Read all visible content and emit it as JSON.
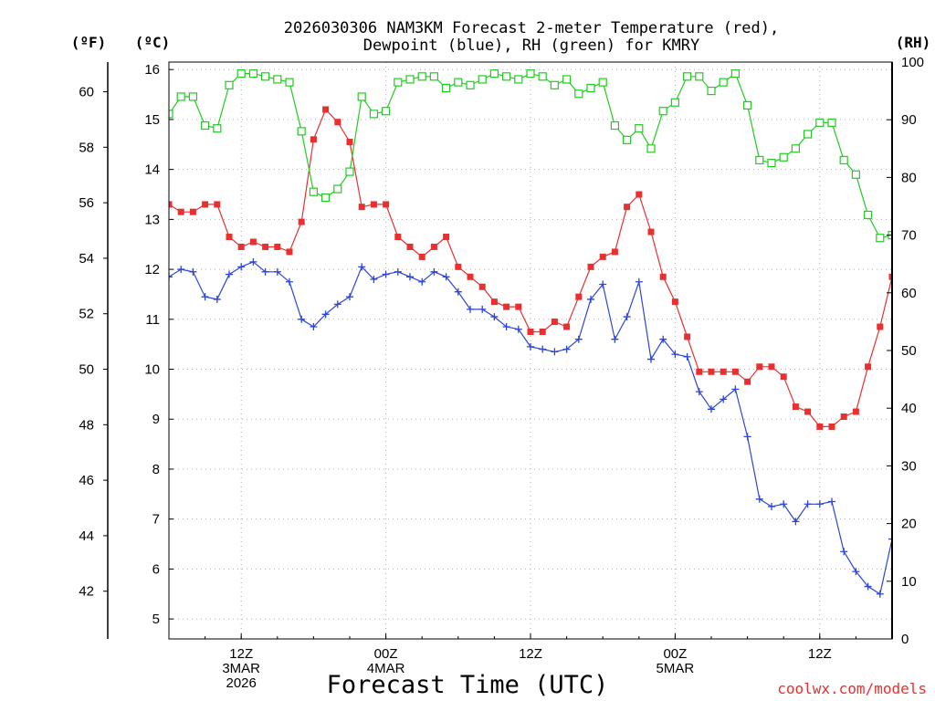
{
  "chart_data": {
    "type": "line",
    "title": "2026030306 NAM3KM Forecast 2-meter Temperature (red),",
    "subtitle": "Dewpoint (blue), RH (green) for KMRY",
    "xlabel": "Forecast Time (UTC)",
    "y_left_outer_label": "(ºF)",
    "y_left_label": "(ºC)",
    "y_right_label": "(RH)",
    "credit": "coolwx.com/models",
    "x_ticks": [
      {
        "h": 6,
        "lines": [
          "12Z",
          "3MAR",
          "2026"
        ]
      },
      {
        "h": 18,
        "lines": [
          "00Z",
          "4MAR"
        ]
      },
      {
        "h": 30,
        "lines": [
          "12Z"
        ]
      },
      {
        "h": 42,
        "lines": [
          "00Z",
          "5MAR"
        ]
      },
      {
        "h": 54,
        "lines": [
          "12Z"
        ]
      }
    ],
    "x_range_hours": [
      0,
      60
    ],
    "y_celsius_range": [
      4.6,
      16.15
    ],
    "y_celsius_ticks": [
      "5",
      "6",
      "7",
      "8",
      "9",
      "10",
      "11",
      "12",
      "13",
      "14",
      "15",
      "16"
    ],
    "y_fahrenheit_ticks": [
      "42",
      "44",
      "46",
      "48",
      "50",
      "52",
      "54",
      "56",
      "58",
      "60"
    ],
    "y_rh_range": [
      0,
      100
    ],
    "y_rh_ticks": [
      "0",
      "10",
      "20",
      "30",
      "40",
      "50",
      "60",
      "70",
      "80",
      "90",
      "100"
    ],
    "series": [
      {
        "name": "Temperature",
        "unit": "C",
        "color": "#e83030",
        "marker": "filled-square",
        "values": [
          13.3,
          13.15,
          13.15,
          13.3,
          13.3,
          12.65,
          12.45,
          12.55,
          12.45,
          12.45,
          12.35,
          12.95,
          14.6,
          15.2,
          14.95,
          14.55,
          13.25,
          13.3,
          13.3,
          12.65,
          12.45,
          12.25,
          12.45,
          12.65,
          12.05,
          11.85,
          11.65,
          11.35,
          11.25,
          11.25,
          10.75,
          10.75,
          10.95,
          10.85,
          11.45,
          12.05,
          12.25,
          12.35,
          13.25,
          13.5,
          12.75,
          11.85,
          11.35,
          10.65,
          9.95,
          9.95,
          9.95,
          9.95,
          9.75,
          10.05,
          10.05,
          9.85,
          9.25,
          9.15,
          8.85,
          8.85,
          9.05,
          9.15,
          10.05,
          10.85,
          11.85
        ]
      },
      {
        "name": "Dewpoint",
        "unit": "C",
        "color": "#2d45d8",
        "marker": "plus",
        "values": [
          11.85,
          12.0,
          11.95,
          11.45,
          11.4,
          11.9,
          12.05,
          12.15,
          11.95,
          11.95,
          11.75,
          11.0,
          10.85,
          11.1,
          11.3,
          11.45,
          12.05,
          11.8,
          11.9,
          11.95,
          11.85,
          11.75,
          11.95,
          11.85,
          11.55,
          11.2,
          11.2,
          11.05,
          10.85,
          10.8,
          10.45,
          10.4,
          10.35,
          10.4,
          10.6,
          11.4,
          11.7,
          10.6,
          11.05,
          11.75,
          10.2,
          10.6,
          10.3,
          10.25,
          9.55,
          9.2,
          9.4,
          9.6,
          8.65,
          7.4,
          7.25,
          7.3,
          6.95,
          7.3,
          7.3,
          7.35,
          6.35,
          5.95,
          5.65,
          5.5,
          6.6
        ]
      },
      {
        "name": "RH",
        "unit": "%",
        "color": "#22cc22",
        "marker": "open-square",
        "values": [
          91,
          94,
          94,
          89,
          88.5,
          96,
          98,
          98,
          97.5,
          97,
          96.5,
          88,
          77.5,
          76.5,
          78,
          81,
          94,
          91,
          91.5,
          96.5,
          97,
          97.5,
          97.5,
          95.5,
          96.5,
          96,
          97,
          98,
          97.5,
          97,
          98,
          97.5,
          96,
          97,
          94.5,
          95.5,
          96.5,
          89,
          86.5,
          88.5,
          85,
          91.5,
          93,
          97.5,
          97.5,
          95,
          96.5,
          98,
          92.5,
          83,
          82.5,
          83.5,
          85,
          87.5,
          89.5,
          89.5,
          83,
          80.5,
          73.5,
          69.5,
          70
        ]
      }
    ]
  }
}
